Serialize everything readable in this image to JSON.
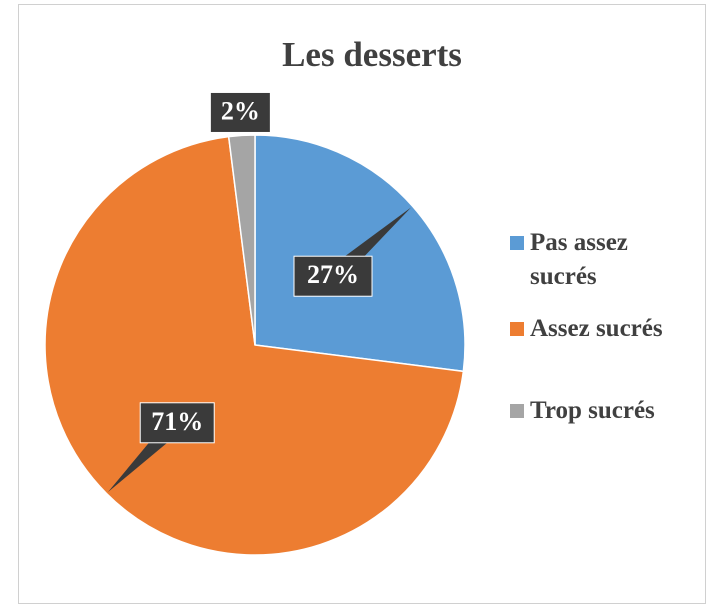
{
  "chart_data": {
    "type": "pie",
    "title": "Les desserts",
    "categories": [
      "Pas assez sucrés",
      "Assez sucrés",
      "Trop sucrés"
    ],
    "values": [
      27,
      71,
      2
    ],
    "value_labels": [
      "27%",
      "71%",
      "2%"
    ],
    "colors": [
      "#5b9bd5",
      "#ed7d31",
      "#a5a5a5"
    ],
    "legend": "right"
  }
}
